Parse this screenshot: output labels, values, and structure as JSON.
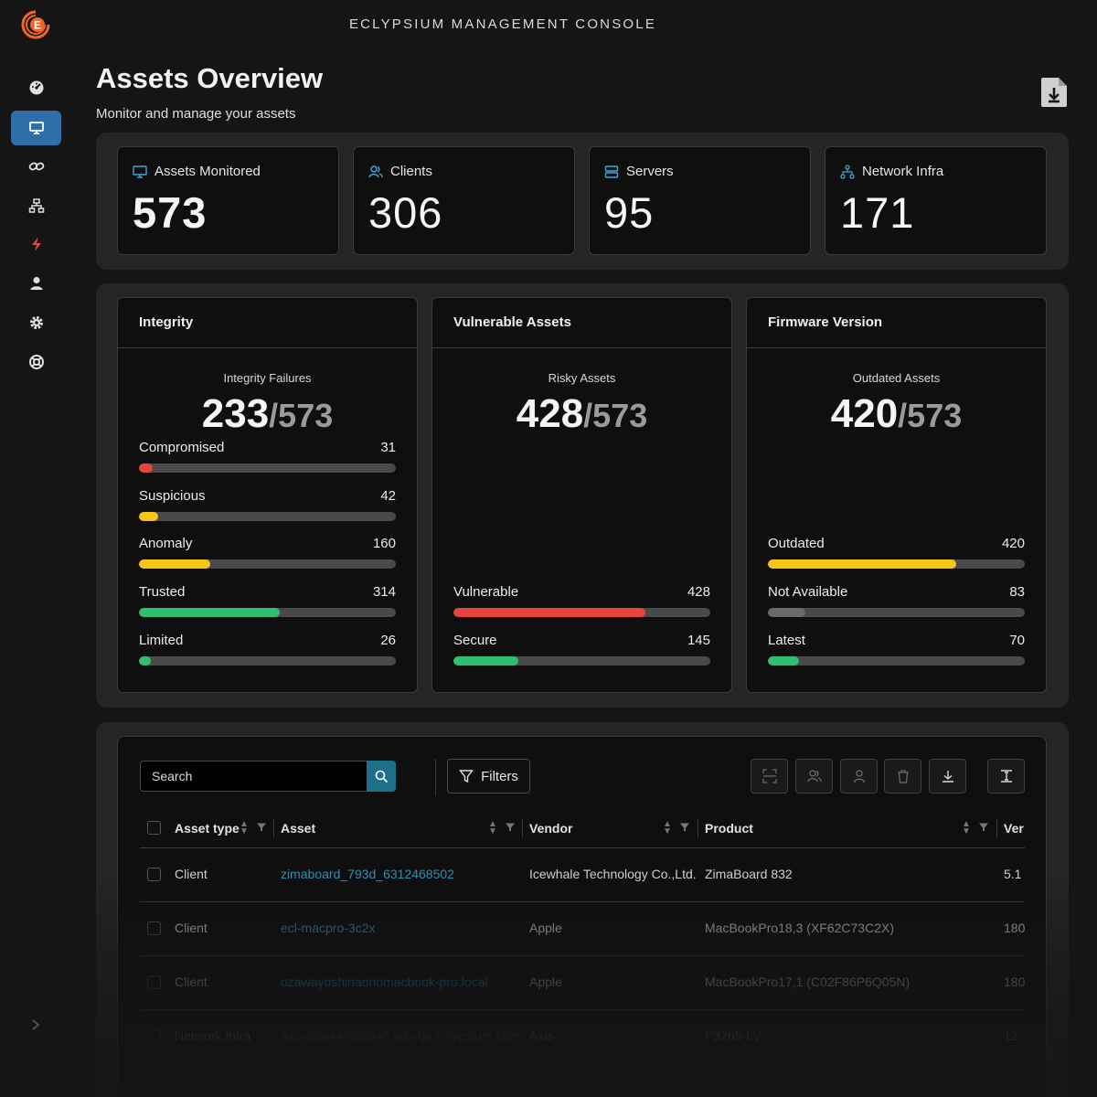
{
  "app": {
    "console_title": "ECLYPSIUM MANAGEMENT CONSOLE",
    "logo_icon": "eclypsium-logo",
    "brand_color": "#f26522"
  },
  "sidebar": {
    "items": [
      {
        "icon": "dashboard-gauge-icon",
        "active": false
      },
      {
        "icon": "monitor-icon",
        "active": true
      },
      {
        "icon": "link-icon",
        "active": false
      },
      {
        "icon": "network-icon",
        "active": false
      },
      {
        "icon": "lightning-icon",
        "active": false
      },
      {
        "icon": "user-icon",
        "active": false
      },
      {
        "icon": "gear-icon",
        "active": false
      },
      {
        "icon": "lifebuoy-icon",
        "active": false
      }
    ],
    "expand_icon": "chevron-right-icon"
  },
  "header": {
    "title": "Assets Overview",
    "subtitle": "Monitor and manage your assets",
    "export_icon": "file-download-icon"
  },
  "stats": [
    {
      "label": "Assets Monitored",
      "value": "573",
      "icon": "monitor-icon"
    },
    {
      "label": "Clients",
      "value": "306",
      "icon": "users-icon"
    },
    {
      "label": "Servers",
      "value": "95",
      "icon": "server-icon"
    },
    {
      "label": "Network Infra",
      "value": "171",
      "icon": "network-icon"
    }
  ],
  "integrity": {
    "title": "Integrity",
    "sub": "Integrity Failures",
    "num": "233",
    "den": "/573",
    "bars": [
      {
        "label": "Compromised",
        "value": "31",
        "fraction": 0.054,
        "color": "#e8453c"
      },
      {
        "label": "Suspicious",
        "value": "42",
        "fraction": 0.073,
        "color": "#f5c518"
      },
      {
        "label": "Anomaly",
        "value": "160",
        "fraction": 0.279,
        "color": "#f5c518"
      },
      {
        "label": "Trusted",
        "value": "314",
        "fraction": 0.548,
        "color": "#2fbf71"
      },
      {
        "label": "Limited",
        "value": "26",
        "fraction": 0.045,
        "color": "#2fbf71"
      }
    ]
  },
  "vulnerable": {
    "title": "Vulnerable Assets",
    "sub": "Risky Assets",
    "num": "428",
    "den": "/573",
    "bars": [
      {
        "label": "Vulnerable",
        "value": "428",
        "fraction": 0.747,
        "color": "#e8453c"
      },
      {
        "label": "Secure",
        "value": "145",
        "fraction": 0.253,
        "color": "#2fbf71"
      }
    ]
  },
  "firmware": {
    "title": "Firmware Version",
    "sub": "Outdated Assets",
    "num": "420",
    "den": "/573",
    "bars": [
      {
        "label": "Outdated",
        "value": "420",
        "fraction": 0.733,
        "color": "#f5c518"
      },
      {
        "label": "Not Available",
        "value": "83",
        "fraction": 0.145,
        "color": "#6a6a6a"
      },
      {
        "label": "Latest",
        "value": "70",
        "fraction": 0.122,
        "color": "#2fbf71"
      }
    ]
  },
  "table": {
    "search_placeholder": "Search",
    "filters_label": "Filters",
    "columns": [
      "Asset type",
      "Asset",
      "Vendor",
      "Product",
      "Ver"
    ],
    "rows": [
      {
        "type": "Client",
        "asset": "zimaboard_793d_6312468502",
        "vendor": "Icewhale Technology Co.,Ltd.",
        "product": "ZimaBoard 832",
        "version": "5.1"
      },
      {
        "type": "Client",
        "asset": "ecl-macpro-3c2x",
        "vendor": "Apple",
        "product": "MacBookPro18,3 (XF62C73C2X)",
        "version": "180"
      },
      {
        "type": "Client",
        "asset": "ozawayoshinaonomacbook-pro.local",
        "vendor": "Apple",
        "product": "MacBookPro17,1 (C02F86P6Q05N)",
        "version": "180"
      },
      {
        "type": "Network Infra",
        "asset": "axis-b8a44f6d6046.pdx-qa.eclypsium.com",
        "vendor": "Axis",
        "product": "P3265-LV",
        "version": "12."
      }
    ]
  }
}
